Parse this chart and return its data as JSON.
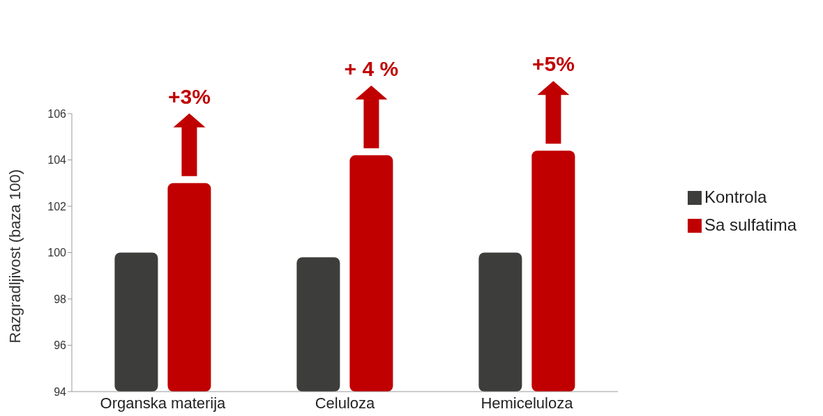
{
  "chart_data": {
    "type": "bar",
    "ylabel": "Razgradljivost (baza 100)",
    "categories": [
      "Organska materija",
      "Celuloza",
      "Hemiceluloza"
    ],
    "series": [
      {
        "name": "Kontrola",
        "color": "#3d3d3b",
        "values": [
          100,
          99.8,
          100
        ]
      },
      {
        "name": "Sa sulfatima",
        "color": "#c00000",
        "values": [
          103,
          104.2,
          104.4
        ]
      }
    ],
    "ylim": [
      94,
      106
    ],
    "yticks": [
      94,
      96,
      98,
      100,
      102,
      104,
      106
    ],
    "grid": false,
    "legend": "right",
    "annotations": [
      "+3%",
      "+ 4 %",
      "+5%"
    ]
  }
}
